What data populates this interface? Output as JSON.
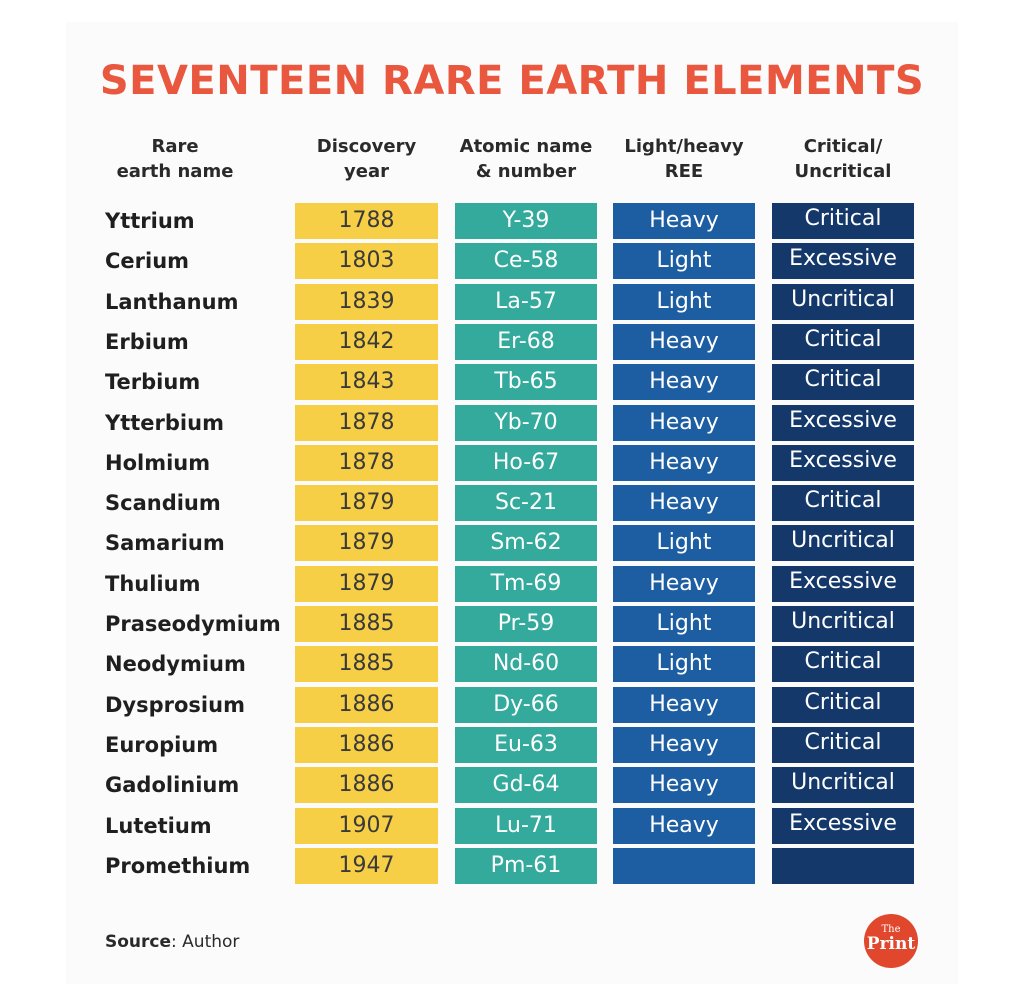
{
  "title": "SEVENTEEN RARE EARTH ELEMENTS",
  "headers": {
    "name": "Rare\nearth name",
    "year": "Discovery\nyear",
    "atomic": "Atomic name\n& number",
    "light_heavy": "Light/heavy\nREE",
    "critical": "Critical/\nUncritical"
  },
  "rows": [
    {
      "name": "Yttrium",
      "year": "1788",
      "atomic": "Y-39",
      "light_heavy": "Heavy",
      "critical": "Critical"
    },
    {
      "name": "Cerium",
      "year": "1803",
      "atomic": "Ce-58",
      "light_heavy": "Light",
      "critical": "Excessive"
    },
    {
      "name": "Lanthanum",
      "year": "1839",
      "atomic": "La-57",
      "light_heavy": "Light",
      "critical": "Uncritical"
    },
    {
      "name": "Erbium",
      "year": "1842",
      "atomic": "Er-68",
      "light_heavy": "Heavy",
      "critical": "Critical"
    },
    {
      "name": "Terbium",
      "year": "1843",
      "atomic": "Tb-65",
      "light_heavy": "Heavy",
      "critical": "Critical"
    },
    {
      "name": "Ytterbium",
      "year": "1878",
      "atomic": "Yb-70",
      "light_heavy": "Heavy",
      "critical": "Excessive"
    },
    {
      "name": "Holmium",
      "year": "1878",
      "atomic": "Ho-67",
      "light_heavy": "Heavy",
      "critical": "Excessive"
    },
    {
      "name": "Scandium",
      "year": "1879",
      "atomic": "Sc-21",
      "light_heavy": "Heavy",
      "critical": "Critical"
    },
    {
      "name": "Samarium",
      "year": "1879",
      "atomic": "Sm-62",
      "light_heavy": "Light",
      "critical": "Uncritical"
    },
    {
      "name": "Thulium",
      "year": "1879",
      "atomic": "Tm-69",
      "light_heavy": "Heavy",
      "critical": "Excessive"
    },
    {
      "name": "Praseodymium",
      "year": "1885",
      "atomic": "Pr-59",
      "light_heavy": "Light",
      "critical": "Uncritical"
    },
    {
      "name": "Neodymium",
      "year": "1885",
      "atomic": "Nd-60",
      "light_heavy": "Light",
      "critical": "Critical"
    },
    {
      "name": "Dysprosium",
      "year": "1886",
      "atomic": "Dy-66",
      "light_heavy": "Heavy",
      "critical": "Critical"
    },
    {
      "name": "Europium",
      "year": "1886",
      "atomic": "Eu-63",
      "light_heavy": "Heavy",
      "critical": "Critical"
    },
    {
      "name": "Gadolinium",
      "year": "1886",
      "atomic": "Gd-64",
      "light_heavy": "Heavy",
      "critical": "Uncritical"
    },
    {
      "name": "Lutetium",
      "year": "1907",
      "atomic": "Lu-71",
      "light_heavy": "Heavy",
      "critical": "Excessive"
    },
    {
      "name": "Promethium",
      "year": "1947",
      "atomic": "Pm-61",
      "light_heavy": "",
      "critical": ""
    }
  ],
  "source": {
    "label": "Source",
    "text": ": Author"
  },
  "logo": {
    "line1": "The",
    "line2": "Print"
  },
  "colors": {
    "title": "#e8573e",
    "year": "#f6cf47",
    "atomic": "#33aa9c",
    "light_heavy": "#1d5ea2",
    "critical": "#14386a",
    "logo": "#e0472d"
  }
}
